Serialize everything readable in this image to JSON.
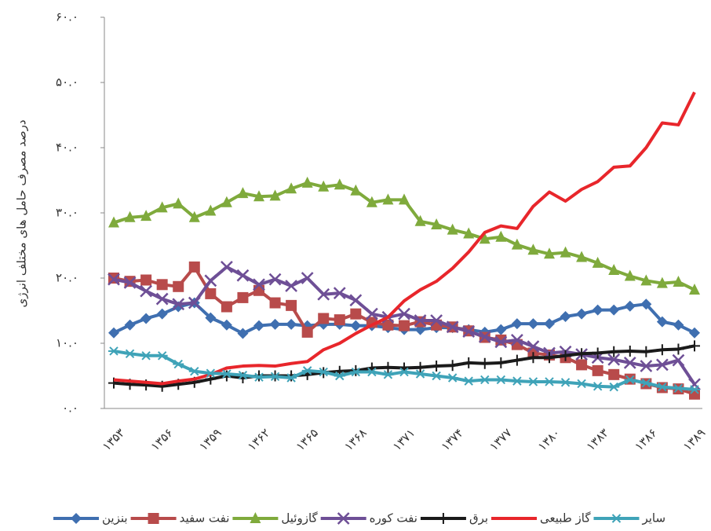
{
  "chart_data": {
    "type": "line",
    "y_label": "درصد مصرف حامل های مختلف انرژی",
    "categories": [
      "۱۳۵۳",
      null,
      null,
      "۱۳۵۶",
      null,
      null,
      "۱۳۵۹",
      null,
      null,
      "۱۳۶۲",
      null,
      null,
      "۱۳۶۵",
      null,
      null,
      "۱۳۶۸",
      null,
      null,
      "۱۳۷۱",
      null,
      null,
      "۱۳۷۴",
      null,
      null,
      "۱۳۷۷",
      null,
      null,
      "۱۳۸۰",
      null,
      null,
      "۱۳۸۳",
      null,
      null,
      "۱۳۸۶",
      null,
      null,
      "۱۳۸۹"
    ],
    "ylim": [
      0,
      60
    ],
    "yticks": [
      {
        "value": 0,
        "label": "۰.۰"
      },
      {
        "value": 10,
        "label": "۱۰.۰"
      },
      {
        "value": 20,
        "label": "۲۰.۰"
      },
      {
        "value": 30,
        "label": "۳۰.۰"
      },
      {
        "value": 40,
        "label": "۴۰.۰"
      },
      {
        "value": 50,
        "label": "۵۰.۰"
      },
      {
        "value": 60,
        "label": "۶۰.۰"
      }
    ],
    "series": [
      {
        "name": "بنزین",
        "color": "#3f6fb0",
        "marker": "diamond",
        "values": [
          11.6,
          12.8,
          13.8,
          14.5,
          15.6,
          16.2,
          13.9,
          12.8,
          11.5,
          12.7,
          12.9,
          12.9,
          12.7,
          12.9,
          12.9,
          12.7,
          12.7,
          12.4,
          12.1,
          12.1,
          12.4,
          12.4,
          12.1,
          11.7,
          12.1,
          13.0,
          13.0,
          13.0,
          14.1,
          14.5,
          15.1,
          15.1,
          15.7,
          16.0,
          13.3,
          12.8,
          11.6
        ]
      },
      {
        "name": "نفت سفید",
        "color": "#b84b4b",
        "marker": "square",
        "values": [
          20,
          19.5,
          19.7,
          19,
          18.7,
          21.7,
          17.6,
          15.6,
          17,
          18.1,
          16.2,
          15.8,
          11.7,
          13.8,
          13.6,
          14.5,
          13.2,
          12.8,
          12.7,
          13.3,
          12.8,
          12.5,
          11.9,
          10.9,
          10.5,
          9.8,
          8.5,
          8.2,
          7.8,
          6.7,
          5.8,
          5.2,
          4.5,
          3.8,
          3.2,
          3.0,
          2.2
        ]
      },
      {
        "name": "گازوئیل",
        "color": "#7faa3c",
        "marker": "triangle",
        "values": [
          28.5,
          29.3,
          29.5,
          30.8,
          31.4,
          29.3,
          30.3,
          31.6,
          33,
          32.5,
          32.6,
          33.7,
          34.6,
          34,
          34.3,
          33.4,
          31.6,
          32,
          32,
          28.7,
          28.2,
          27.4,
          26.8,
          26,
          26.3,
          25.1,
          24.3,
          23.7,
          23.9,
          23.2,
          22.3,
          21.2,
          20.3,
          19.6,
          19.2,
          19.4,
          18.2
        ]
      },
      {
        "name": "نفت کوره",
        "color": "#6e4f96",
        "marker": "x",
        "values": [
          19.8,
          19.3,
          18,
          16.8,
          16,
          16.2,
          19.6,
          21.7,
          20.4,
          19,
          19.8,
          18.8,
          20,
          17.5,
          17.7,
          16.6,
          14.5,
          14,
          14.5,
          13.5,
          13.5,
          12.5,
          11.8,
          11,
          10.2,
          10.5,
          9.5,
          8.5,
          8.7,
          8.3,
          7.8,
          7.5,
          7,
          6.5,
          6.7,
          7.4,
          3.7
        ]
      },
      {
        "name": "برق",
        "color": "#1a1a1a",
        "marker": "plus",
        "values": [
          3.9,
          3.7,
          3.6,
          3.4,
          3.7,
          4,
          4.5,
          5,
          4.7,
          5,
          5,
          5,
          5.2,
          5.5,
          5.7,
          5.8,
          6.2,
          6.3,
          6.2,
          6.3,
          6.5,
          6.6,
          7,
          6.9,
          7,
          7.4,
          7.8,
          7.8,
          8.1,
          8.4,
          8.5,
          8.7,
          8.8,
          8.7,
          9,
          9.1,
          9.6
        ]
      },
      {
        "name": "گاز طبیعی",
        "color": "#e8262b",
        "marker": "none",
        "values": [
          4.4,
          4.2,
          4,
          3.8,
          4.2,
          4.5,
          5.2,
          6.2,
          6.5,
          6.6,
          6.5,
          6.9,
          7.2,
          9,
          10,
          11.5,
          12.8,
          14,
          16.5,
          18.2,
          19.5,
          21.5,
          24,
          27,
          28,
          27.6,
          31,
          33.2,
          31.8,
          33.6,
          34.8,
          37,
          37.2,
          40,
          43.8,
          43.5,
          48.5
        ]
      },
      {
        "name": "سایر",
        "color": "#3fa3b8",
        "marker": "star",
        "values": [
          8.8,
          8.4,
          8.1,
          8.1,
          6.8,
          5.7,
          5.4,
          5.3,
          5.1,
          4.8,
          4.9,
          4.7,
          5.8,
          5.6,
          5,
          5.6,
          5.6,
          5.2,
          5.6,
          5.3,
          5,
          4.7,
          4.2,
          4.4,
          4.4,
          4.2,
          4.1,
          4.1,
          4,
          3.8,
          3.4,
          3.3,
          4.4,
          3.9,
          3.3,
          3.1,
          2.9
        ]
      }
    ]
  }
}
